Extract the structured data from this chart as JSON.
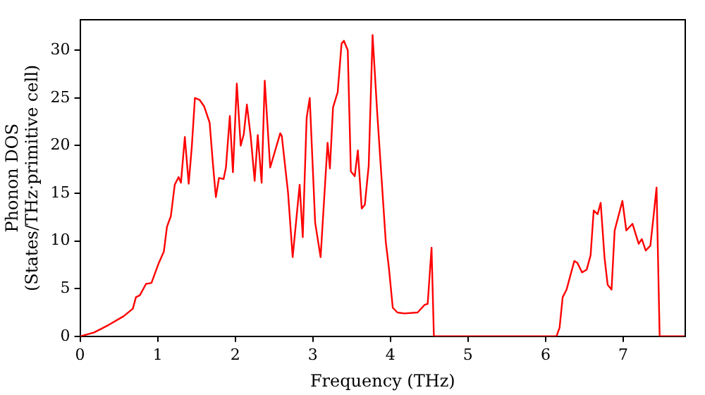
{
  "chart_data": {
    "type": "line",
    "xlabel": "Frequency (THz)",
    "ylabel": "Phonon DOS\n(States/THz·primitive cell)",
    "xlim": [
      0,
      7.8
    ],
    "xticks": [
      0,
      1,
      2,
      3,
      4,
      5,
      6,
      7
    ],
    "ylim": [
      0,
      33.2
    ],
    "yticks": [
      0,
      5,
      10,
      15,
      20,
      25,
      30
    ],
    "grid": false,
    "legend": false,
    "marker": "none",
    "line_style": "solid",
    "series": [
      {
        "color": "#ff0000",
        "x": [
          0,
          0.18,
          0.37,
          0.56,
          0.68,
          0.72,
          0.77,
          0.85,
          0.92,
          1.01,
          1.08,
          1.12,
          1.17,
          1.22,
          1.27,
          1.3,
          1.35,
          1.4,
          1.44,
          1.48,
          1.54,
          1.6,
          1.67,
          1.71,
          1.75,
          1.79,
          1.85,
          1.88,
          1.93,
          1.97,
          2.02,
          2.07,
          2.11,
          2.15,
          2.2,
          2.25,
          2.29,
          2.34,
          2.38,
          2.45,
          2.58,
          2.6,
          2.68,
          2.74,
          2.83,
          2.87,
          2.92,
          2.96,
          3.03,
          3.1,
          3.19,
          3.22,
          3.26,
          3.32,
          3.37,
          3.4,
          3.45,
          3.49,
          3.54,
          3.58,
          3.63,
          3.67,
          3.72,
          3.77,
          3.83,
          3.94,
          3.98,
          4.03,
          4.09,
          4.18,
          4.35,
          4.44,
          4.48,
          4.53,
          4.56,
          5,
          6,
          6.14,
          6.18,
          6.22,
          6.27,
          6.37,
          6.41,
          6.47,
          6.53,
          6.58,
          6.62,
          6.67,
          6.71,
          6.76,
          6.8,
          6.85,
          6.89,
          6.99,
          7.04,
          7.12,
          7.2,
          7.24,
          7.29,
          7.35,
          7.39,
          7.43,
          7.47,
          7.8
        ],
        "values": [
          0,
          0.4,
          1.2,
          2.1,
          2.9,
          4.1,
          4.3,
          5.5,
          5.6,
          7.6,
          8.9,
          11.5,
          12.6,
          15.9,
          16.7,
          16.1,
          20.9,
          16,
          19.9,
          25,
          24.8,
          24.1,
          22.4,
          18.3,
          14.6,
          16.6,
          16.5,
          17.7,
          23.1,
          17.2,
          26.5,
          20,
          21.2,
          24.3,
          20.9,
          16.3,
          21.1,
          16.1,
          26.8,
          17.7,
          21.3,
          21,
          15.1,
          8.3,
          15.9,
          10.4,
          22.9,
          25,
          11.9,
          8.3,
          20.3,
          17.6,
          24,
          25.6,
          30.7,
          31,
          30,
          17.3,
          16.8,
          19.5,
          13.4,
          13.8,
          17.9,
          31.6,
          23.4,
          9.9,
          7.2,
          3,
          2.5,
          2.4,
          2.5,
          3.3,
          3.4,
          9.3,
          0,
          0,
          0,
          0,
          0.9,
          4.1,
          4.9,
          7.9,
          7.7,
          6.7,
          7,
          8.5,
          13.2,
          12.8,
          14,
          8.2,
          5.4,
          4.9,
          11.1,
          14.2,
          11.1,
          11.8,
          9.7,
          10.2,
          9,
          9.5,
          12.5,
          15.6,
          0,
          0
        ]
      }
    ]
  }
}
